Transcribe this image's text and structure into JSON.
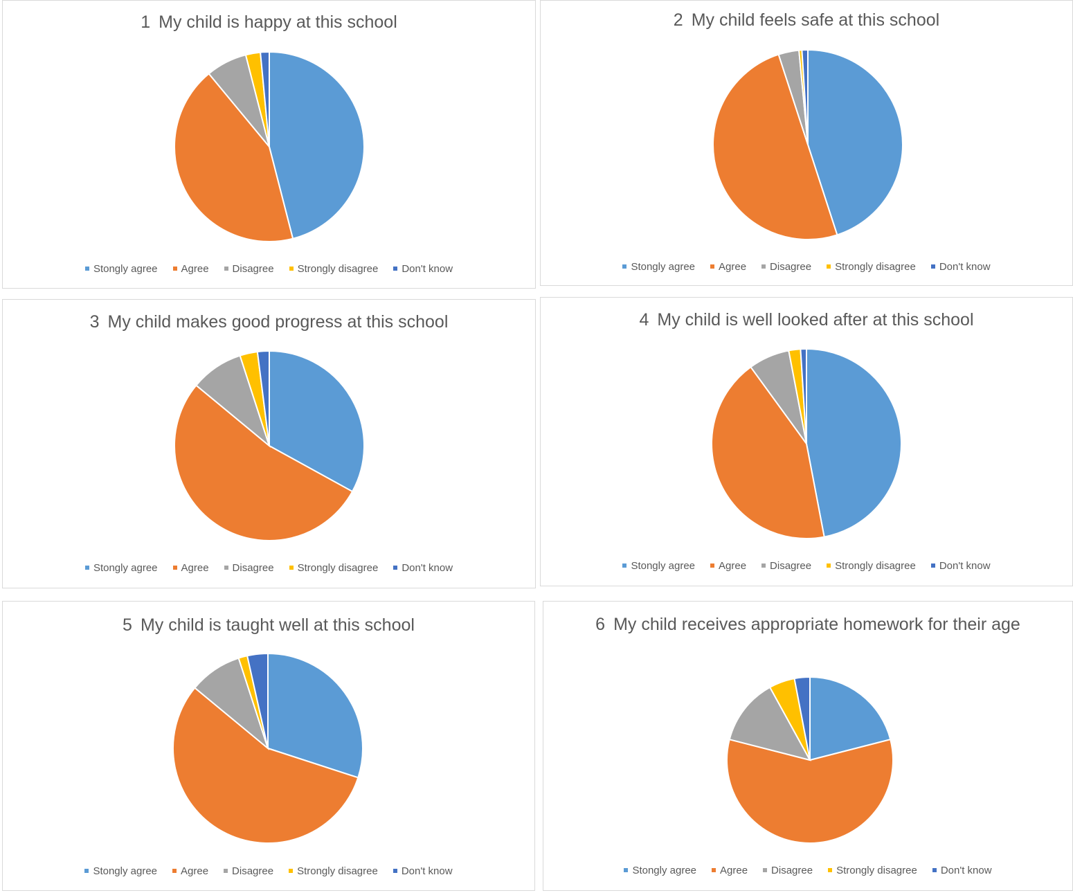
{
  "colors": {
    "strongly_agree": "#5b9bd5",
    "agree": "#ed7d31",
    "disagree": "#a5a5a5",
    "strongly_disagree": "#ffc000",
    "dont_know": "#4472c4"
  },
  "legend_labels": [
    "Stongly agree",
    "Agree",
    "Disagree",
    "Strongly disagree",
    "Don't know"
  ],
  "chart_data": [
    {
      "type": "pie",
      "number": "1",
      "title": "My child is happy at this school",
      "categories": [
        "Stongly agree",
        "Agree",
        "Disagree",
        "Strongly disagree",
        "Don't know"
      ],
      "values": [
        46,
        43,
        7,
        2.5,
        1.5
      ]
    },
    {
      "type": "pie",
      "number": "2",
      "title": "My child feels safe at this school",
      "categories": [
        "Stongly agree",
        "Agree",
        "Disagree",
        "Strongly disagree",
        "Don't know"
      ],
      "values": [
        45,
        50,
        3.5,
        0.5,
        1
      ]
    },
    {
      "type": "pie",
      "number": "3",
      "title": "My child makes good progress at this school",
      "categories": [
        "Stongly agree",
        "Agree",
        "Disagree",
        "Strongly disagree",
        "Don't know"
      ],
      "values": [
        33,
        53,
        9,
        3,
        2
      ]
    },
    {
      "type": "pie",
      "number": "4",
      "title": "My child is well looked after at this school",
      "categories": [
        "Stongly agree",
        "Agree",
        "Disagree",
        "Strongly disagree",
        "Don't know"
      ],
      "values": [
        47,
        43,
        7,
        2,
        1
      ]
    },
    {
      "type": "pie",
      "number": "5",
      "title": "My child is taught well at this school",
      "categories": [
        "Stongly agree",
        "Agree",
        "Disagree",
        "Strongly disagree",
        "Don't know"
      ],
      "values": [
        30,
        56,
        9,
        1.5,
        3.5
      ]
    },
    {
      "type": "pie",
      "number": "6",
      "title": "My child receives appropriate homework for their age",
      "categories": [
        "Stongly agree",
        "Agree",
        "Disagree",
        "Strongly disagree",
        "Don't know"
      ],
      "values": [
        21,
        58,
        13,
        5,
        3
      ]
    }
  ]
}
